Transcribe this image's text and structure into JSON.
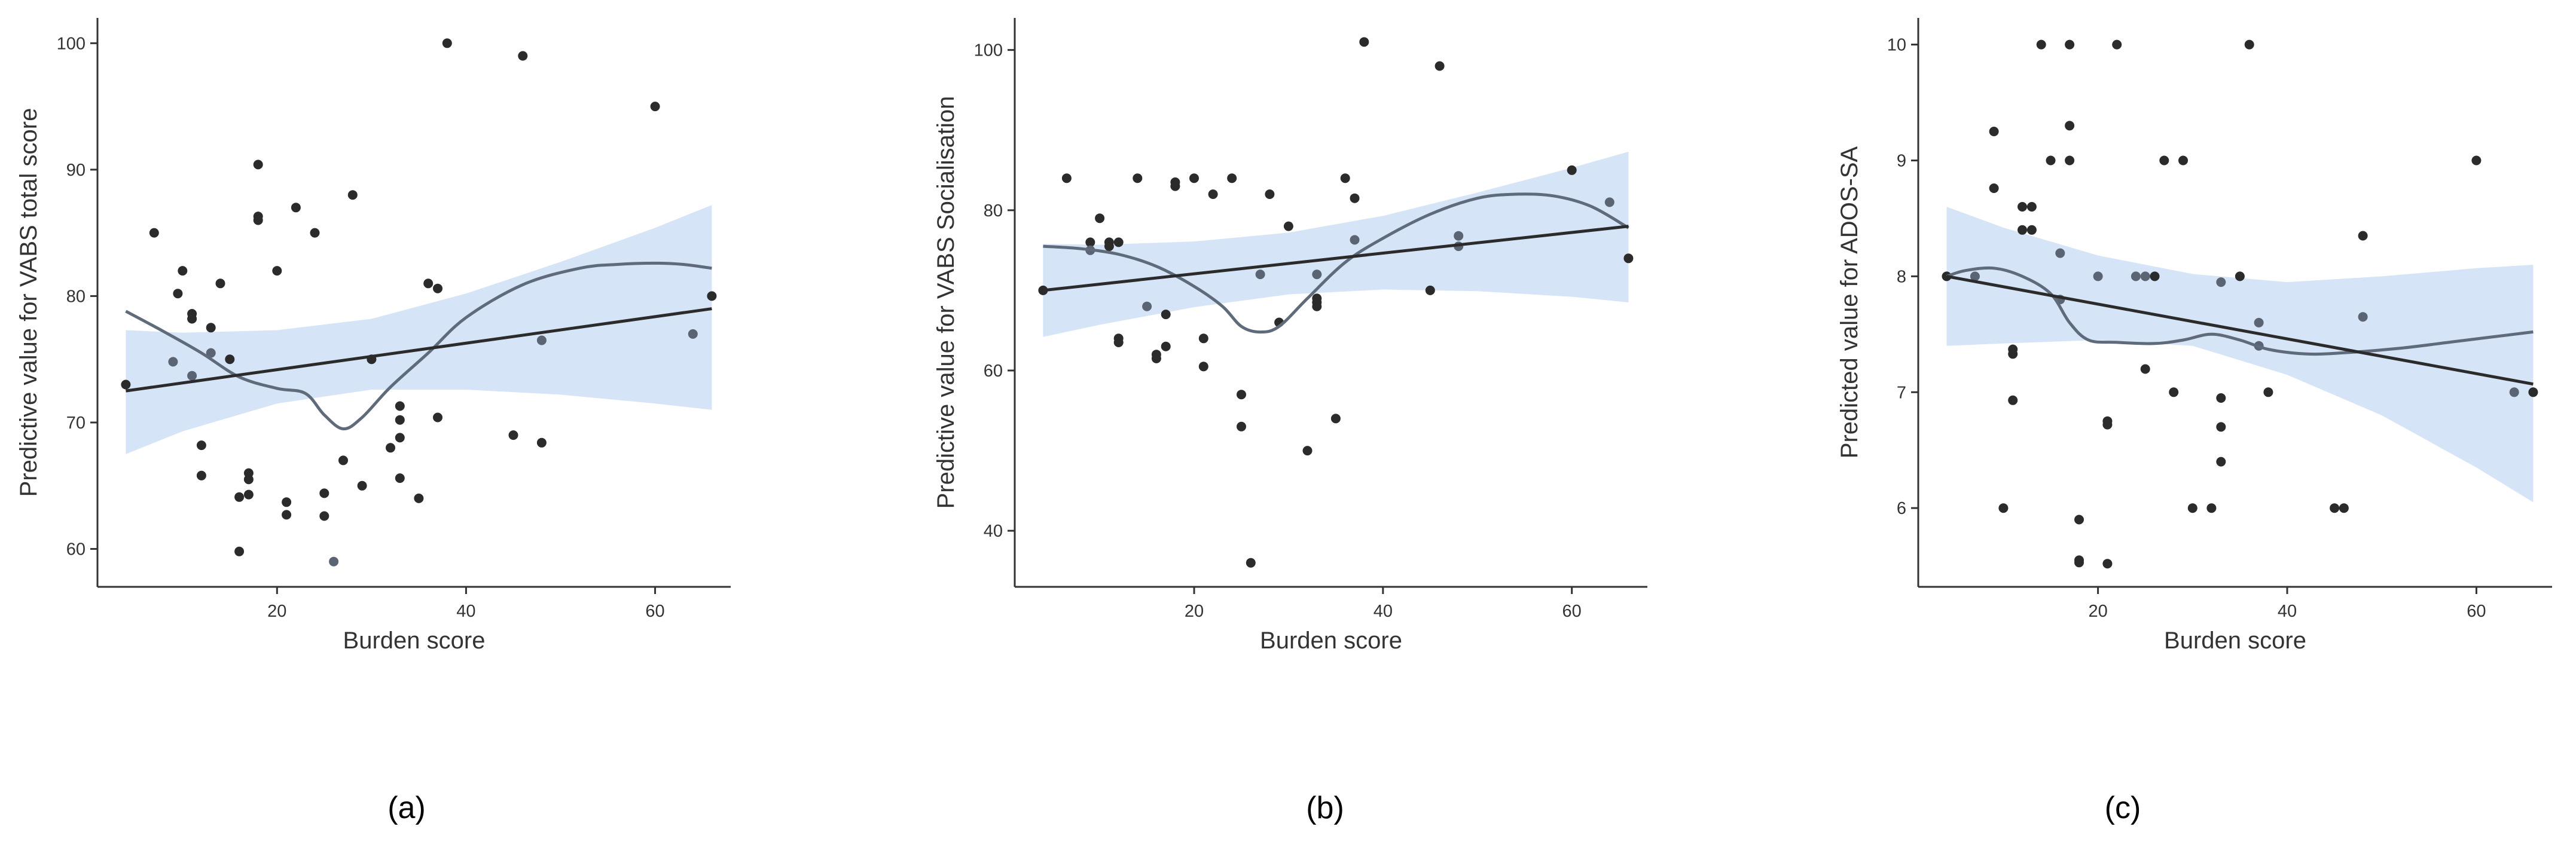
{
  "figure": {
    "panels": [
      {
        "label": "(a)",
        "chart_data": {
          "type": "scatter",
          "title": "",
          "xlabel": "Burden score",
          "ylabel": "Predictive value for VABS total score",
          "xlim": [
            1,
            68
          ],
          "ylim": [
            57,
            102
          ],
          "xticks": [
            20,
            40,
            60
          ],
          "yticks": [
            60,
            70,
            80,
            90,
            100
          ],
          "xtick_labels": [
            "20",
            "40",
            "60"
          ],
          "ytick_labels": [
            "60",
            "70",
            "80",
            "90",
            "100"
          ],
          "grid": false,
          "points": [
            [
              4,
              73
            ],
            [
              7,
              85
            ],
            [
              9,
              74.8
            ],
            [
              9.5,
              80.2
            ],
            [
              10,
              82
            ],
            [
              11,
              73.7
            ],
            [
              11,
              78.6
            ],
            [
              11,
              78.2
            ],
            [
              12,
              65.8
            ],
            [
              12,
              68.2
            ],
            [
              13,
              75.5
            ],
            [
              13,
              77.5
            ],
            [
              14,
              81
            ],
            [
              15,
              75
            ],
            [
              16,
              59.8
            ],
            [
              16,
              64.1
            ],
            [
              17,
              64.3
            ],
            [
              17,
              65.5
            ],
            [
              17,
              66
            ],
            [
              18,
              86.3
            ],
            [
              18,
              90.4
            ],
            [
              18,
              86
            ],
            [
              20,
              82
            ],
            [
              21,
              63.7
            ],
            [
              21,
              62.7
            ],
            [
              22,
              87
            ],
            [
              24,
              85
            ],
            [
              25,
              64.4
            ],
            [
              25,
              62.6
            ],
            [
              26,
              59
            ],
            [
              27,
              67
            ],
            [
              28,
              88
            ],
            [
              29,
              65
            ],
            [
              30,
              75
            ],
            [
              32,
              68
            ],
            [
              33,
              71.3
            ],
            [
              33,
              70.2
            ],
            [
              33,
              68.8
            ],
            [
              33,
              65.6
            ],
            [
              35,
              64
            ],
            [
              36,
              81
            ],
            [
              37,
              70.4
            ],
            [
              37,
              80.6
            ],
            [
              38,
              100
            ],
            [
              45,
              69
            ],
            [
              46,
              99
            ],
            [
              48,
              76.5
            ],
            [
              48,
              68.4
            ],
            [
              60,
              95
            ],
            [
              64,
              77
            ],
            [
              66,
              80
            ]
          ],
          "grey_point_indices": [
            2,
            5,
            10,
            29,
            46,
            49
          ],
          "linear_fit": {
            "x": [
              4,
              66
            ],
            "y": [
              72.5,
              79
            ]
          },
          "confidence_band": {
            "x": [
              4,
              10,
              20,
              30,
              40,
              50,
              60,
              66
            ],
            "upper": [
              77.3,
              77.1,
              77.3,
              78.2,
              80.2,
              82.7,
              85.4,
              87.2
            ],
            "lower": [
              67.5,
              69.3,
              71.5,
              72.6,
              72.6,
              72.2,
              71.5,
              71
            ]
          },
          "smooth_curve": {
            "x": [
              4,
              8,
              12,
              16,
              20,
              23,
              25,
              27,
              29,
              32,
              36,
              40,
              46,
              52,
              56,
              60,
              63,
              66
            ],
            "y": [
              78.8,
              77.2,
              75.5,
              73.6,
              72.7,
              72.3,
              70.6,
              69.5,
              70.4,
              72.8,
              75.5,
              78.3,
              80.9,
              82.2,
              82.5,
              82.6,
              82.5,
              82.2
            ]
          },
          "colors": {
            "points": "#2b2b2b",
            "points_grey": "#5a6472",
            "linear_fit": "#2b2b2b",
            "smooth": "#5f6b7b",
            "band": "#d6e4f7"
          }
        }
      },
      {
        "label": "(b)",
        "chart_data": {
          "type": "scatter",
          "title": "",
          "xlabel": "Burden score",
          "ylabel": "Predictive value for VABS Socialisation",
          "xlim": [
            1,
            68
          ],
          "ylim": [
            33,
            104
          ],
          "xticks": [
            20,
            40,
            60
          ],
          "yticks": [
            40,
            60,
            80,
            100
          ],
          "xtick_labels": [
            "20",
            "40",
            "60"
          ],
          "ytick_labels": [
            "40",
            "60",
            "80",
            "100"
          ],
          "grid": false,
          "points": [
            [
              4,
              70
            ],
            [
              6.5,
              84
            ],
            [
              9,
              76
            ],
            [
              9,
              75
            ],
            [
              10,
              79
            ],
            [
              11,
              76
            ],
            [
              11,
              75.5
            ],
            [
              12,
              76
            ],
            [
              12,
              64
            ],
            [
              12,
              63.5
            ],
            [
              14,
              84
            ],
            [
              15,
              68
            ],
            [
              16,
              62
            ],
            [
              16,
              61.5
            ],
            [
              17,
              67
            ],
            [
              17,
              63
            ],
            [
              18,
              83
            ],
            [
              18,
              83.5
            ],
            [
              20,
              84
            ],
            [
              21,
              60.5
            ],
            [
              21,
              64
            ],
            [
              22,
              82
            ],
            [
              24,
              84
            ],
            [
              25,
              57
            ],
            [
              25,
              53
            ],
            [
              26,
              36
            ],
            [
              27,
              72
            ],
            [
              28,
              82
            ],
            [
              29,
              66
            ],
            [
              30,
              78
            ],
            [
              32,
              50
            ],
            [
              33,
              72
            ],
            [
              33,
              69
            ],
            [
              33,
              68.5
            ],
            [
              33,
              68
            ],
            [
              35,
              54
            ],
            [
              36,
              84
            ],
            [
              37,
              81.5
            ],
            [
              37,
              76.3
            ],
            [
              38,
              101
            ],
            [
              45,
              70
            ],
            [
              46,
              98
            ],
            [
              48,
              76.8
            ],
            [
              48,
              75.5
            ],
            [
              60,
              85
            ],
            [
              64,
              81
            ],
            [
              66,
              74
            ]
          ],
          "grey_point_indices": [
            3,
            11,
            26,
            31,
            38,
            42,
            43,
            45
          ],
          "linear_fit": {
            "x": [
              4,
              66
            ],
            "y": [
              70,
              78
            ]
          },
          "confidence_band": {
            "x": [
              4,
              10,
              20,
              30,
              40,
              50,
              60,
              66
            ],
            "upper": [
              75.8,
              75.7,
              76.1,
              77.2,
              79.3,
              82.2,
              85.3,
              87.3
            ],
            "lower": [
              64.2,
              65.7,
              67.9,
              69.5,
              70.1,
              69.9,
              69.2,
              68.5
            ]
          },
          "smooth_curve": {
            "x": [
              4,
              8,
              12,
              16,
              20,
              23,
              25,
              27,
              29,
              32,
              36,
              40,
              45,
              50,
              54,
              58,
              62,
              66
            ],
            "y": [
              75.5,
              75.2,
              74.5,
              73,
              70.5,
              68,
              65.5,
              64.8,
              65.5,
              69,
              73.5,
              76.5,
              79.5,
              81.5,
              82,
              81.8,
              80.5,
              77.8
            ]
          },
          "colors": {
            "points": "#2b2b2b",
            "points_grey": "#5a6472",
            "linear_fit": "#2b2b2b",
            "smooth": "#5f6b7b",
            "band": "#d6e4f7"
          }
        }
      },
      {
        "label": "(c)",
        "chart_data": {
          "type": "scatter",
          "title": "",
          "xlabel": "Burden score",
          "ylabel": "Predicted value for ADOS-SA",
          "xlim": [
            1,
            68
          ],
          "ylim": [
            5.32,
            10.23
          ],
          "xticks": [
            20,
            40,
            60
          ],
          "yticks": [
            6,
            7,
            8,
            9,
            10
          ],
          "xtick_labels": [
            "20",
            "40",
            "60"
          ],
          "ytick_labels": [
            "6",
            "7",
            "8",
            "9",
            "10"
          ],
          "grid": false,
          "points": [
            [
              4,
              8
            ],
            [
              7,
              8
            ],
            [
              9,
              9.25
            ],
            [
              9,
              8.76
            ],
            [
              10,
              6
            ],
            [
              11,
              7.37
            ],
            [
              11,
              7.33
            ],
            [
              11,
              6.93
            ],
            [
              12,
              8.6
            ],
            [
              12,
              8.4
            ],
            [
              13,
              8.6
            ],
            [
              13,
              8.4
            ],
            [
              14,
              10
            ],
            [
              15,
              9
            ],
            [
              16,
              8.2
            ],
            [
              16,
              7.8
            ],
            [
              17,
              10
            ],
            [
              17,
              9.3
            ],
            [
              17,
              9
            ],
            [
              18,
              5.9
            ],
            [
              18,
              5.55
            ],
            [
              18,
              5.53
            ],
            [
              20,
              8
            ],
            [
              21,
              6.75
            ],
            [
              21,
              6.72
            ],
            [
              21,
              5.52
            ],
            [
              22,
              10
            ],
            [
              24,
              8
            ],
            [
              25,
              7.2
            ],
            [
              25,
              8
            ],
            [
              26,
              8
            ],
            [
              27,
              9
            ],
            [
              28,
              7
            ],
            [
              29,
              9
            ],
            [
              30,
              6
            ],
            [
              32,
              6
            ],
            [
              33,
              7.95
            ],
            [
              33,
              6.95
            ],
            [
              33,
              6.7
            ],
            [
              33,
              6.4
            ],
            [
              35,
              8
            ],
            [
              36,
              10
            ],
            [
              37,
              7.6
            ],
            [
              37,
              7.4
            ],
            [
              38,
              7
            ],
            [
              45,
              6
            ],
            [
              46,
              6
            ],
            [
              48,
              8.35
            ],
            [
              48,
              7.65
            ],
            [
              60,
              9
            ],
            [
              64,
              7
            ],
            [
              66,
              7
            ]
          ],
          "grey_point_indices": [
            1,
            14,
            15,
            22,
            27,
            29,
            36,
            42,
            43,
            48,
            50
          ],
          "linear_fit": {
            "x": [
              4,
              66
            ],
            "y": [
              8,
              7.07
            ]
          },
          "confidence_band": {
            "x": [
              4,
              10,
              20,
              30,
              40,
              50,
              60,
              66
            ],
            "upper": [
              8.6,
              8.42,
              8.18,
              8.02,
              7.95,
              8.0,
              8.07,
              8.1
            ],
            "lower": [
              7.4,
              7.42,
              7.45,
              7.4,
              7.15,
              6.8,
              6.35,
              6.05
            ]
          },
          "smooth_curve": {
            "x": [
              4,
              6,
              9,
              12,
              15,
              17,
              19,
              22,
              26,
              29,
              32,
              35,
              38,
              42,
              46,
              52,
              58,
              66
            ],
            "y": [
              8.0,
              8.05,
              8.07,
              8.0,
              7.85,
              7.6,
              7.45,
              7.43,
              7.42,
              7.45,
              7.5,
              7.45,
              7.37,
              7.33,
              7.34,
              7.38,
              7.44,
              7.52
            ]
          },
          "colors": {
            "points": "#2b2b2b",
            "points_grey": "#5a6472",
            "linear_fit": "#2b2b2b",
            "smooth": "#5f6b7b",
            "band": "#d6e4f7"
          }
        }
      }
    ]
  }
}
